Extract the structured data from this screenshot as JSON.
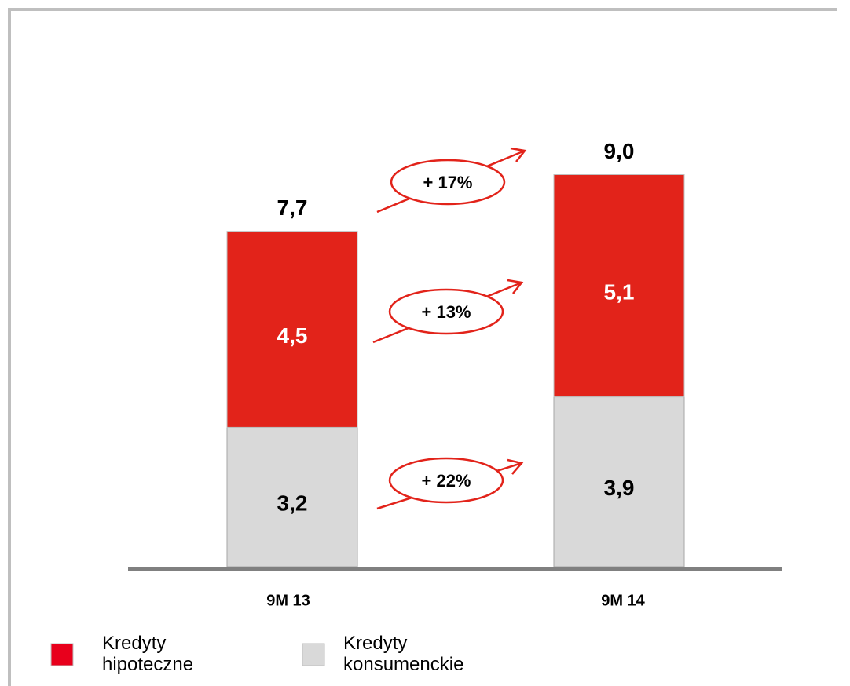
{
  "chart_data": {
    "type": "stacked_bar",
    "categories": [
      "9M 13",
      "9M 14"
    ],
    "series": [
      {
        "name": "Kredyty konsumenckie",
        "color": "#d9d9d9",
        "values": [
          3.2,
          3.9
        ],
        "value_labels": [
          "3,2",
          "3,9"
        ]
      },
      {
        "name": "Kredyty hipoteczne",
        "color": "#e2231a",
        "values": [
          4.5,
          5.1
        ],
        "value_labels": [
          "4,5",
          "5,1"
        ]
      }
    ],
    "totals": [
      7.7,
      9.0
    ],
    "total_labels": [
      "7,7",
      "9,0"
    ],
    "annotations": [
      "+ 17%",
      "+ 13%",
      "+ 22%"
    ]
  }
}
